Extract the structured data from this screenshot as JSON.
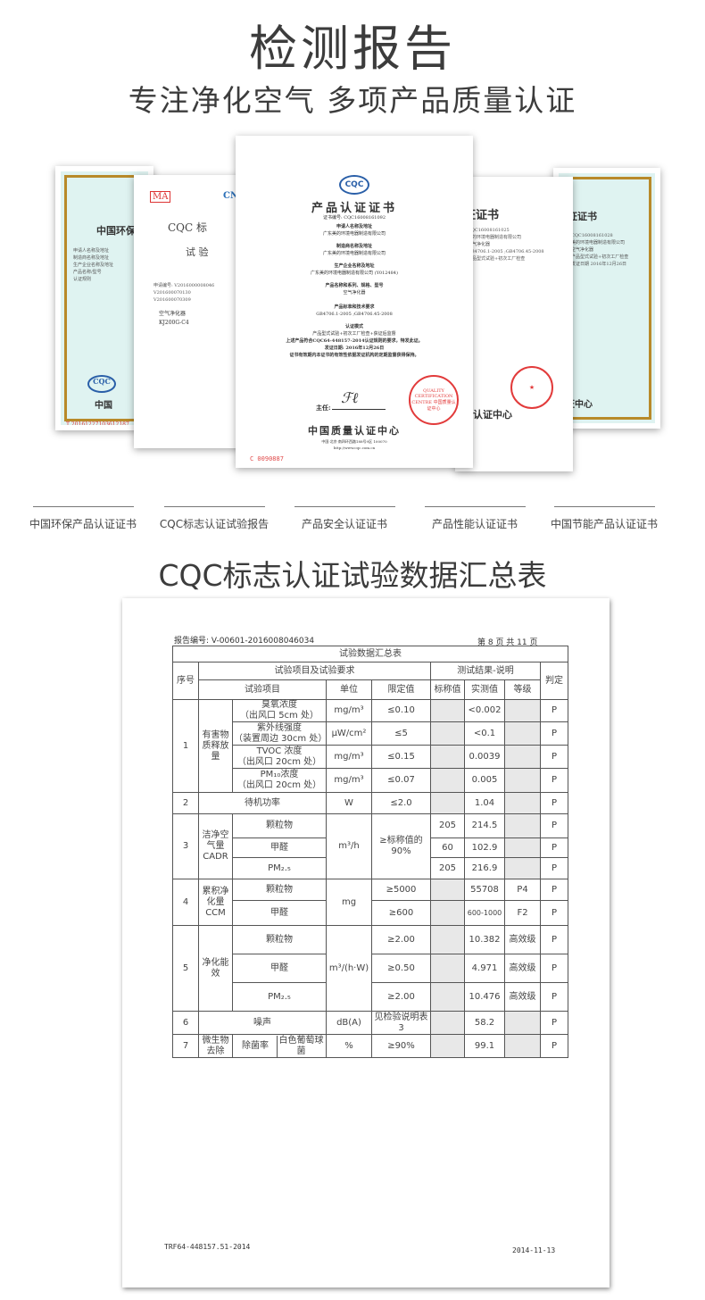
{
  "header": {
    "title": "检测报告",
    "subtitle": "专注净化空气  多项产品质量认证"
  },
  "certificates": {
    "env": {
      "title": "中国环保",
      "serial": "T 20161227103612187",
      "org": "中国"
    },
    "cqc_test": {
      "title": "CQC 标",
      "subtitle": "试 验",
      "logos": [
        "MA",
        "CNAS"
      ],
      "product": "空气净化器",
      "model": "KJ200G-C4"
    },
    "product": {
      "logo": "CQC",
      "title": "产品认证证书",
      "number": "证书编号: CQC16008161092",
      "s1": "申请人名称及地址",
      "s1v": "广东美的环境电器制造有限公司",
      "s2": "制造商名称及地址",
      "s2v": "广东美的环境电器制造有限公司",
      "s3": "生产企业名称及地址",
      "s3v": "广东美的环境电器制造有限公司 (Y012484)",
      "s4": "产品名称和系列、规格、型号",
      "s4v": "空气净化器",
      "s5": "产品标准和技术要求",
      "s5v": "GB4706.1-2005 ;GB4706.45-2008",
      "s6": "认证模式",
      "s6v": "产品型式试验+初次工厂检查+获证后监督",
      "statement": "上述产品符合CQC64-448157-2014认证规则的要求，特发此证。",
      "date": "发证日期: 2016年12月26日",
      "validity": "证书有效期内本证书的有效性依据发证机构的定期监督获得保持。",
      "director": "主任:",
      "org": "中国质量认证中心",
      "address": "中国·北京·南四环西路188号9区 100070",
      "url": "http://www.cqc.com.cn",
      "serial": "C 0090887",
      "seal": "QUALITY CERTIFICATION CENTRE 中国质量认证中心"
    },
    "safety": {
      "title": "证证书",
      "org": "认证中心"
    },
    "energy": {
      "title": "证证书",
      "org": "证中心"
    }
  },
  "captions": [
    "中国环保产品认证证书",
    "CQC标志认证试验报告",
    "产品安全认证证书",
    "产品性能认证证书",
    "中国节能产品认证证书"
  ],
  "section_title": "CQC标志认证试验数据汇总表",
  "report": {
    "number": "报告编号: V-00601-2016008046034",
    "page": "第 8 页 共 11 页",
    "table_title": "试验数据汇总表",
    "h": {
      "seq": "序号",
      "items_req": "试验项目及试验要求",
      "results": "测试结果-说明",
      "verdict": "判定",
      "item": "试验项目",
      "unit": "单位",
      "limit": "限定值",
      "nominal": "标称值",
      "measured": "实测值",
      "grade": "等级"
    },
    "r1": {
      "seq": "1",
      "group": "有害物质释放量",
      "a": {
        "item": "臭氧浓度",
        "loc": "（出风口 5cm 处）",
        "unit": "mg/m³",
        "limit": "≤0.10",
        "measured": "<0.002",
        "verdict": "P"
      },
      "b": {
        "item": "紫外线强度",
        "loc": "（装置周边 30cm 处）",
        "unit": "μW/cm²",
        "limit": "≤5",
        "measured": "<0.1",
        "verdict": "P"
      },
      "c": {
        "item": "TVOC 浓度",
        "loc": "（出风口 20cm 处）",
        "unit": "mg/m³",
        "limit": "≤0.15",
        "measured": "0.0039",
        "verdict": "P"
      },
      "d": {
        "item": "PM₁₀浓度",
        "loc": "（出风口 20cm 处）",
        "unit": "mg/m³",
        "limit": "≤0.07",
        "measured": "0.005",
        "verdict": "P"
      }
    },
    "r2": {
      "seq": "2",
      "item": "待机功率",
      "unit": "W",
      "limit": "≤2.0",
      "measured": "1.04",
      "verdict": "P"
    },
    "r3": {
      "seq": "3",
      "group": "洁净空气量 CADR",
      "unit": "m³/h",
      "limit": "≥标称值的90%",
      "a": {
        "item": "颗粒物",
        "nominal": "205",
        "measured": "214.5",
        "verdict": "P"
      },
      "b": {
        "item": "甲醛",
        "nominal": "60",
        "measured": "102.9",
        "verdict": "P"
      },
      "c": {
        "item": "PM₂.₅",
        "nominal": "205",
        "measured": "216.9",
        "verdict": "P"
      }
    },
    "r4": {
      "seq": "4",
      "group": "累积净化量 CCM",
      "unit": "mg",
      "a": {
        "item": "颗粒物",
        "limit": "≥5000",
        "measured": "55708",
        "grade": "P4",
        "verdict": "P"
      },
      "b": {
        "item": "甲醛",
        "limit": "≥600",
        "measured": "600-1000",
        "grade": "F2",
        "verdict": "P"
      }
    },
    "r5": {
      "seq": "5",
      "group": "净化能效",
      "unit": "m³/(h·W)",
      "a": {
        "item": "颗粒物",
        "limit": "≥2.00",
        "measured": "10.382",
        "grade": "高效级",
        "verdict": "P"
      },
      "b": {
        "item": "甲醛",
        "limit": "≥0.50",
        "measured": "4.971",
        "grade": "高效级",
        "verdict": "P"
      },
      "c": {
        "item": "PM₂.₅",
        "limit": "≥2.00",
        "measured": "10.476",
        "grade": "高效级",
        "verdict": "P"
      }
    },
    "r6": {
      "seq": "6",
      "item": "噪声",
      "unit": "dB(A)",
      "limit": "见检验说明表 3",
      "measured": "58.2",
      "verdict": "P"
    },
    "r7": {
      "seq": "7",
      "group": "微生物去除",
      "item": "除菌率",
      "sub": "白色葡萄球菌",
      "unit": "%",
      "limit": "≥90%",
      "measured": "99.1",
      "verdict": "P"
    },
    "footer_code": "TRF64-448157.51-2014",
    "footer_date": "2014-11-13"
  }
}
